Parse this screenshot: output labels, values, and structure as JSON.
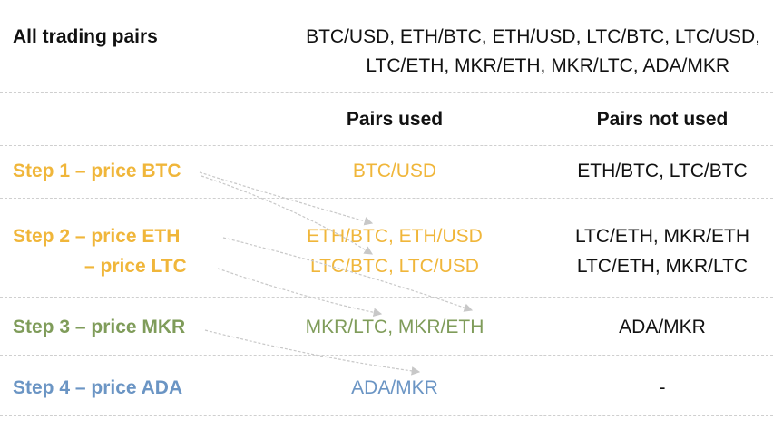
{
  "colors": {
    "step1_2": "#f0b63a",
    "step3": "#7f9c5a",
    "step4": "#6b95c4",
    "text": "#111111",
    "arrow": "#c8c8c8",
    "separator": "#cfcfcf"
  },
  "header": {
    "label": "All trading pairs",
    "pairs_line1": "BTC/USD, ETH/BTC, ETH/USD, LTC/BTC, LTC/USD,",
    "pairs_line2": "LTC/ETH, MKR/ETH, MKR/LTC, ADA/MKR"
  },
  "columns": {
    "used": "Pairs used",
    "not_used": "Pairs not used"
  },
  "steps": [
    {
      "label": "Step 1 – price BTC",
      "used": "BTC/USD",
      "not_used": "ETH/BTC, LTC/BTC"
    },
    {
      "label": "Step 2 – price ETH",
      "label2": "– price LTC",
      "used": "ETH/BTC, ETH/USD",
      "used2": "LTC/BTC, LTC/USD",
      "not_used": "LTC/ETH, MKR/ETH",
      "not_used2": "LTC/ETH, MKR/LTC"
    },
    {
      "label": "Step 3 – price MKR",
      "used": "MKR/LTC, MKR/ETH",
      "not_used": "ADA/MKR"
    },
    {
      "label": "Step 4 – price ADA",
      "used": "ADA/MKR",
      "not_used": "-"
    }
  ]
}
